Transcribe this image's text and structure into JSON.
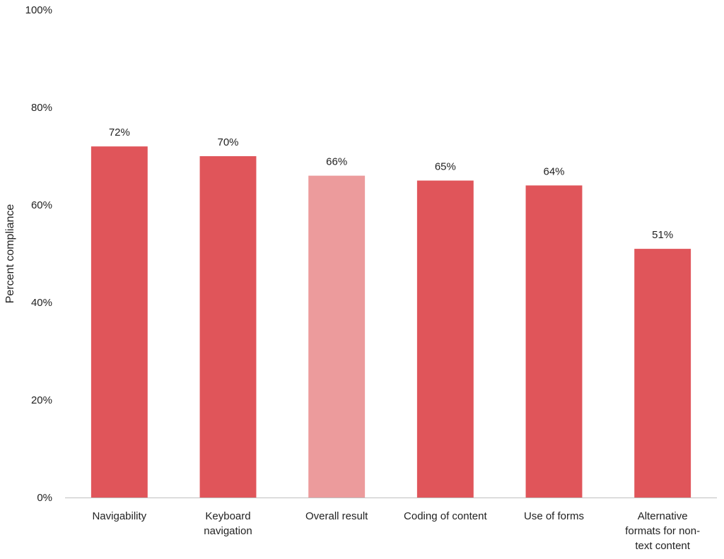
{
  "chart_data": {
    "type": "bar",
    "title": "",
    "xlabel": "",
    "ylabel": "Percent compliance",
    "ylim": [
      0,
      100
    ],
    "yticks": [
      "0%",
      "20%",
      "40%",
      "60%",
      "80%",
      "100%"
    ],
    "grid": false,
    "categories": [
      [
        "Navigability"
      ],
      [
        "Keyboard",
        "navigation"
      ],
      [
        "Overall result"
      ],
      [
        "Coding of content"
      ],
      [
        "Use of forms"
      ],
      [
        "Alternative",
        "formats for non-",
        "text content"
      ]
    ],
    "values": [
      72,
      70,
      66,
      65,
      64,
      51
    ],
    "data_labels": [
      "72%",
      "70%",
      "66%",
      "65%",
      "64%",
      "51%"
    ],
    "bar_colors": [
      "#e0555a",
      "#e0555a",
      "#ec9b9c",
      "#e0555a",
      "#e0555a",
      "#e0555a"
    ]
  }
}
